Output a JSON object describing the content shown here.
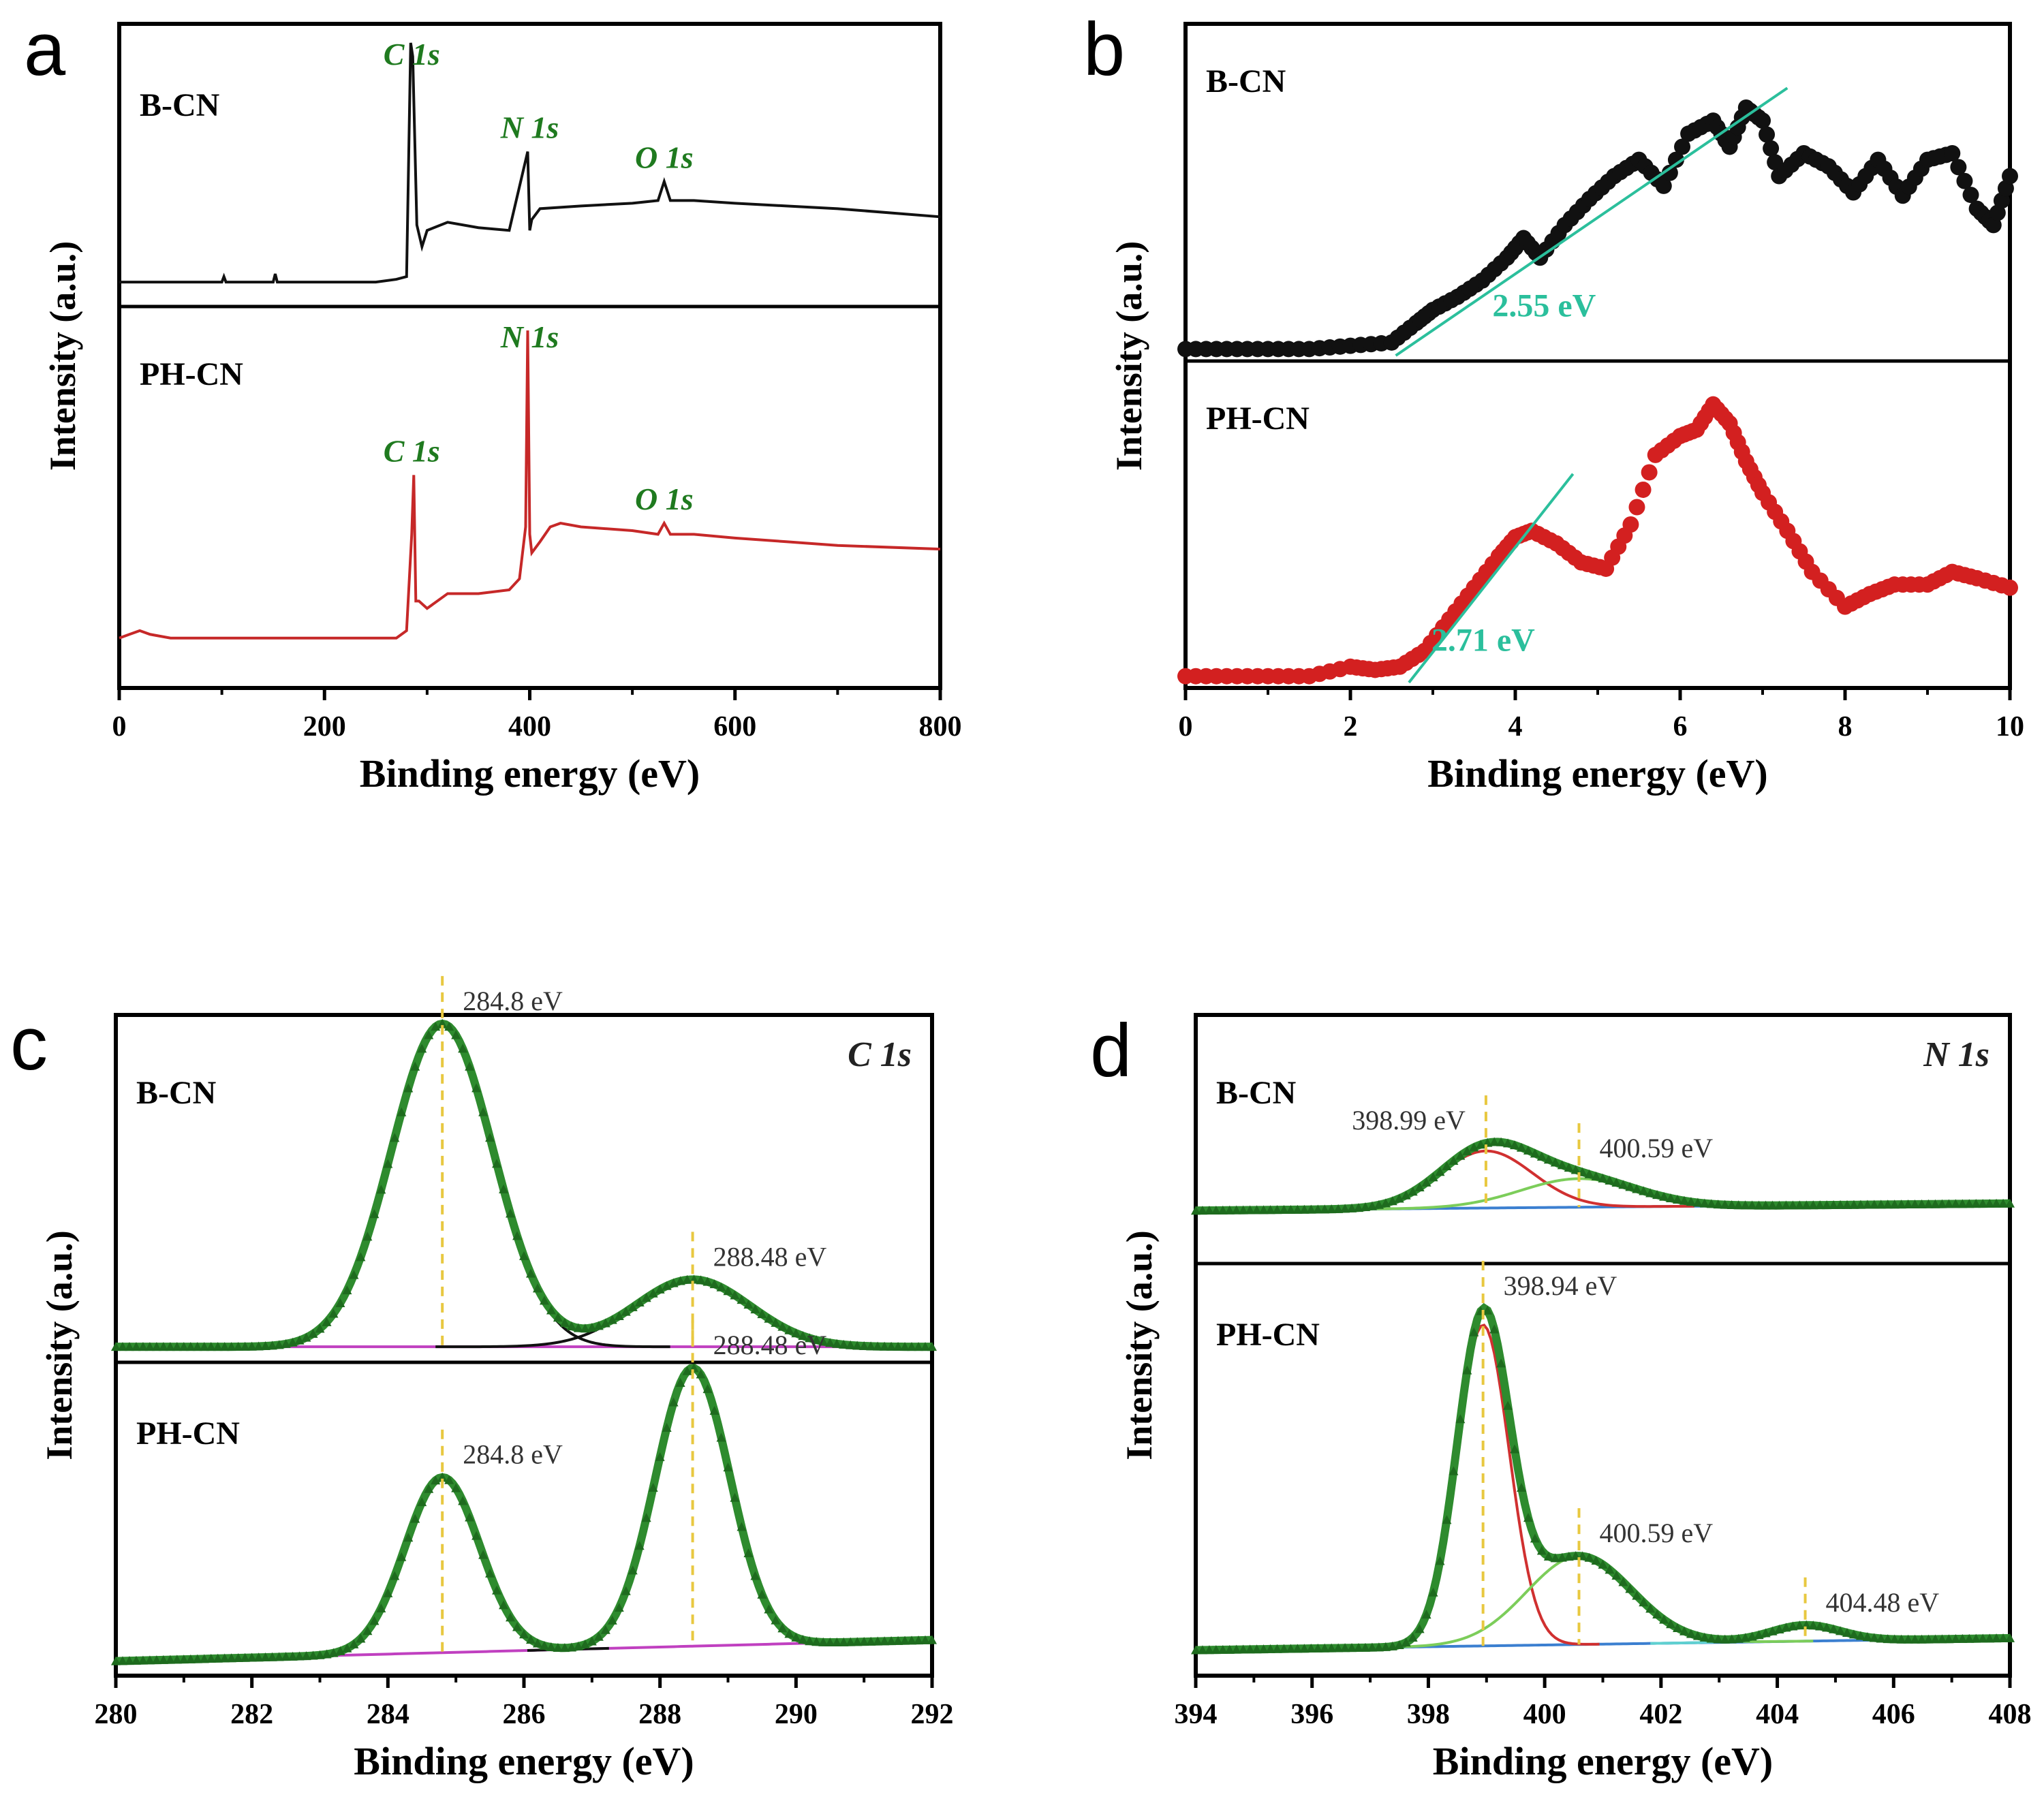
{
  "figure": {
    "panel_letters": [
      "a",
      "b",
      "c",
      "d"
    ],
    "colors": {
      "axis": "#000000",
      "black_trace": "#111111",
      "red_trace": "#c62828",
      "peak_label": "#1f7a1f",
      "bandgap_line": "#2bbf9c",
      "fit_envelope": "#2e8b2e",
      "component_red": "#d03030",
      "component_green": "#7ccd5a",
      "component_blue": "#3b7fd0",
      "component_cyan": "#5fd0d0",
      "baseline_magenta": "#c040c0",
      "marker_line": "#e8c840"
    }
  },
  "chart_data": [
    {
      "panel": "a",
      "type": "line",
      "title": "",
      "xlabel": "Binding energy (eV)",
      "ylabel": "Intensity (a.u.)",
      "xlim": [
        0,
        800
      ],
      "xticks": [
        "0",
        "200",
        "400",
        "600",
        "800"
      ],
      "grid": false,
      "subplots": [
        {
          "name": "B-CN",
          "color": "#111111",
          "ylim": [
            0,
            1
          ],
          "x": [
            0,
            50,
            100,
            102,
            104,
            150,
            152,
            154,
            200,
            250,
            270,
            280,
            284,
            286,
            290,
            295,
            300,
            320,
            350,
            380,
            398,
            400,
            402,
            410,
            450,
            500,
            525,
            531,
            537,
            560,
            600,
            650,
            700,
            800
          ],
          "y": [
            0.07,
            0.07,
            0.07,
            0.09,
            0.07,
            0.07,
            0.1,
            0.07,
            0.07,
            0.07,
            0.08,
            0.09,
            0.95,
            0.9,
            0.28,
            0.2,
            0.26,
            0.29,
            0.27,
            0.26,
            0.55,
            0.26,
            0.3,
            0.34,
            0.35,
            0.36,
            0.37,
            0.44,
            0.37,
            0.37,
            0.36,
            0.35,
            0.34,
            0.31
          ],
          "annotations": [
            {
              "label": "C 1s",
              "x": 285
            },
            {
              "label": "N 1s",
              "x": 400
            },
            {
              "label": "O 1s",
              "x": 531
            }
          ]
        },
        {
          "name": "PH-CN",
          "color": "#c62828",
          "ylim": [
            0,
            1
          ],
          "x": [
            0,
            10,
            20,
            30,
            50,
            100,
            150,
            200,
            250,
            270,
            280,
            285,
            287,
            289,
            292,
            300,
            320,
            350,
            380,
            390,
            396,
            398,
            400,
            402,
            410,
            420,
            430,
            450,
            500,
            525,
            531,
            537,
            560,
            600,
            650,
            700,
            800
          ],
          "y": [
            0.12,
            0.13,
            0.14,
            0.13,
            0.12,
            0.12,
            0.12,
            0.12,
            0.12,
            0.12,
            0.14,
            0.4,
            0.56,
            0.22,
            0.22,
            0.2,
            0.24,
            0.24,
            0.25,
            0.28,
            0.42,
            0.95,
            0.4,
            0.35,
            0.38,
            0.42,
            0.43,
            0.42,
            0.41,
            0.4,
            0.43,
            0.4,
            0.4,
            0.39,
            0.38,
            0.37,
            0.36
          ],
          "annotations": [
            {
              "label": "C 1s",
              "x": 285
            },
            {
              "label": "N 1s",
              "x": 400
            },
            {
              "label": "O 1s",
              "x": 531
            }
          ]
        }
      ]
    },
    {
      "panel": "b",
      "type": "scatter",
      "title": "",
      "xlabel": "Binding energy (eV)",
      "ylabel": "Intensity (a.u.)",
      "xlim": [
        0,
        10
      ],
      "xticks": [
        "0",
        "2",
        "4",
        "6",
        "8",
        "10"
      ],
      "grid": false,
      "subplots": [
        {
          "name": "B-CN",
          "color": "#111111",
          "ylim": [
            0,
            1
          ],
          "x": [
            0,
            0.5,
            1,
            1.5,
            2,
            2.5,
            2.8,
            3.0,
            3.3,
            3.6,
            3.9,
            4.1,
            4.3,
            4.6,
            4.9,
            5.2,
            5.5,
            5.8,
            6.1,
            6.4,
            6.6,
            6.8,
            7.0,
            7.2,
            7.5,
            7.8,
            8.1,
            8.4,
            8.7,
            9.0,
            9.3,
            9.6,
            9.8,
            10
          ],
          "y": [
            0.02,
            0.02,
            0.02,
            0.02,
            0.03,
            0.04,
            0.1,
            0.14,
            0.18,
            0.23,
            0.3,
            0.36,
            0.3,
            0.4,
            0.48,
            0.55,
            0.6,
            0.52,
            0.68,
            0.72,
            0.64,
            0.76,
            0.72,
            0.55,
            0.62,
            0.58,
            0.5,
            0.6,
            0.49,
            0.6,
            0.62,
            0.45,
            0.4,
            0.55
          ],
          "fit_line": {
            "x": [
              2.55,
              7.3
            ],
            "y": [
              0.0,
              0.82
            ]
          },
          "annotation": "2.55 eV"
        },
        {
          "name": "PH-CN",
          "color": "#d32020",
          "ylim": [
            0,
            1
          ],
          "x": [
            0,
            0.5,
            1,
            1.5,
            2,
            2.3,
            2.6,
            2.9,
            3.2,
            3.5,
            3.8,
            4.0,
            4.2,
            4.5,
            4.8,
            5.1,
            5.4,
            5.7,
            6.0,
            6.2,
            6.4,
            6.6,
            6.8,
            7.0,
            7.3,
            7.6,
            8.0,
            8.3,
            8.6,
            9.0,
            9.3,
            9.6,
            10
          ],
          "y": [
            0.02,
            0.02,
            0.02,
            0.02,
            0.05,
            0.04,
            0.05,
            0.1,
            0.2,
            0.3,
            0.4,
            0.46,
            0.48,
            0.44,
            0.38,
            0.36,
            0.5,
            0.72,
            0.78,
            0.8,
            0.88,
            0.82,
            0.7,
            0.6,
            0.48,
            0.35,
            0.24,
            0.28,
            0.31,
            0.31,
            0.35,
            0.33,
            0.3
          ],
          "fit_line": {
            "x": [
              2.71,
              4.7
            ],
            "y": [
              0.0,
              0.66
            ]
          },
          "annotation": "2.71 eV"
        }
      ]
    },
    {
      "panel": "c",
      "type": "line",
      "title": "C 1s",
      "xlabel": "Binding energy (eV)",
      "ylabel": "Intensity (a.u.)",
      "xlim": [
        280,
        292
      ],
      "xticks": [
        "280",
        "282",
        "284",
        "286",
        "288",
        "290",
        "292"
      ],
      "grid": false,
      "subplots": [
        {
          "name": "B-CN",
          "ylim": [
            0,
            1
          ],
          "baseline": [
            0.03,
            0.03
          ],
          "peaks": [
            {
              "center": 284.8,
              "height": 0.96,
              "width": 0.75,
              "label": "284.8 eV"
            },
            {
              "center": 288.48,
              "height": 0.2,
              "width": 0.85,
              "label": "288.48 eV"
            }
          ]
        },
        {
          "name": "PH-CN",
          "ylim": [
            0,
            1
          ],
          "baseline": [
            0.03,
            0.1
          ],
          "peaks": [
            {
              "center": 284.8,
              "height": 0.58,
              "width": 0.55,
              "label": "284.8 eV"
            },
            {
              "center": 288.48,
              "height": 0.92,
              "width": 0.55,
              "label": "288.48 eV"
            }
          ]
        }
      ]
    },
    {
      "panel": "d",
      "type": "line",
      "title": "N 1s",
      "xlabel": "Binding energy (eV)",
      "ylabel": "Intensity (a.u.)",
      "xlim": [
        394,
        408
      ],
      "xticks": [
        "394",
        "396",
        "398",
        "400",
        "402",
        "404",
        "406",
        "408"
      ],
      "grid": false,
      "subplots": [
        {
          "name": "B-CN",
          "ylim": [
            0,
            1
          ],
          "baseline": [
            0.2,
            0.23
          ],
          "peaks": [
            {
              "center": 398.99,
              "height": 0.24,
              "width": 0.8,
              "label": "398.99 eV",
              "color": "#d03030"
            },
            {
              "center": 400.59,
              "height": 0.12,
              "width": 1.0,
              "label": "400.59 eV",
              "color": "#7ccd5a"
            }
          ]
        },
        {
          "name": "PH-CN",
          "ylim": [
            0,
            1
          ],
          "baseline": [
            0.05,
            0.08
          ],
          "peaks": [
            {
              "center": 398.94,
              "height": 0.8,
              "width": 0.45,
              "label": "398.94 eV",
              "color": "#d03030"
            },
            {
              "center": 400.59,
              "height": 0.22,
              "width": 0.9,
              "label": "400.59 eV",
              "color": "#7ccd5a"
            },
            {
              "center": 404.48,
              "height": 0.04,
              "width": 0.6,
              "label": "404.48 eV",
              "color": "#5fd0d0"
            }
          ]
        }
      ]
    }
  ]
}
